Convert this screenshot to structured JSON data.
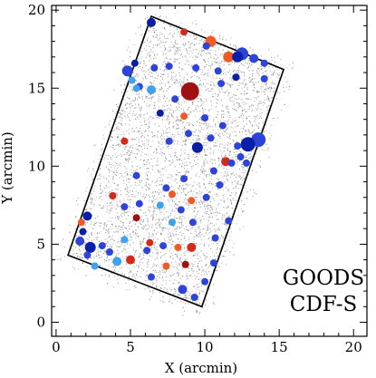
{
  "chart_data": {
    "type": "scatter",
    "xlabel": "X (arcmin)",
    "ylabel": "Y (arcmin)",
    "xlim": [
      -0.3,
      20.9
    ],
    "ylim": [
      -0.9,
      20.3
    ],
    "xticks": [
      "0",
      "5",
      "10",
      "15",
      "20"
    ],
    "yticks": [
      "0",
      "5",
      "10",
      "15",
      "20"
    ],
    "annotation_lines": [
      "GOODS",
      "CDF-S"
    ],
    "grid": false,
    "outline_corners": [
      [
        6.4,
        19.6
      ],
      [
        15.3,
        16.2
      ],
      [
        9.8,
        1.0
      ],
      [
        0.8,
        4.3
      ]
    ],
    "background_points_note": "dense field of faint grey points within outline",
    "colors": {
      "frame": "#000000",
      "dark_blue": "#0a1fa8",
      "blue": "#2e43d8",
      "light_blue": "#3ea2ee",
      "orange": "#f05a24",
      "red": "#d42a1a",
      "dark_red": "#a01010",
      "noise": "#7a7a7a"
    },
    "sources": [
      {
        "x": 6.4,
        "y": 19.2,
        "size": 5,
        "color": "dark_blue"
      },
      {
        "x": 8.6,
        "y": 18.6,
        "size": 4,
        "color": "red"
      },
      {
        "x": 10.4,
        "y": 18.0,
        "size": 6,
        "color": "orange"
      },
      {
        "x": 10.1,
        "y": 17.7,
        "size": 4,
        "color": "blue"
      },
      {
        "x": 11.6,
        "y": 17.0,
        "size": 6,
        "color": "orange"
      },
      {
        "x": 12.5,
        "y": 17.2,
        "size": 7,
        "color": "blue"
      },
      {
        "x": 12.2,
        "y": 17.0,
        "size": 6,
        "color": "dark_blue"
      },
      {
        "x": 13.3,
        "y": 16.9,
        "size": 5,
        "color": "blue"
      },
      {
        "x": 14.0,
        "y": 16.6,
        "size": 4,
        "color": "blue"
      },
      {
        "x": 4.8,
        "y": 16.1,
        "size": 6,
        "color": "blue"
      },
      {
        "x": 5.3,
        "y": 16.6,
        "size": 4,
        "color": "dark_blue"
      },
      {
        "x": 5.1,
        "y": 15.5,
        "size": 4,
        "color": "light_blue"
      },
      {
        "x": 5.6,
        "y": 15.1,
        "size": 4,
        "color": "blue"
      },
      {
        "x": 6.6,
        "y": 16.3,
        "size": 4,
        "color": "blue"
      },
      {
        "x": 7.6,
        "y": 16.4,
        "size": 4,
        "color": "blue"
      },
      {
        "x": 9.4,
        "y": 16.3,
        "size": 4,
        "color": "blue"
      },
      {
        "x": 10.9,
        "y": 16.1,
        "size": 4,
        "color": "blue"
      },
      {
        "x": 11.1,
        "y": 15.3,
        "size": 4,
        "color": "blue"
      },
      {
        "x": 12.1,
        "y": 15.7,
        "size": 4,
        "color": "dark_blue"
      },
      {
        "x": 14.0,
        "y": 15.6,
        "size": 4,
        "color": "blue"
      },
      {
        "x": 5.4,
        "y": 15.0,
        "size": 4,
        "color": "light_blue"
      },
      {
        "x": 6.4,
        "y": 14.9,
        "size": 5,
        "color": "light_blue"
      },
      {
        "x": 9.0,
        "y": 14.8,
        "size": 10,
        "color": "dark_red"
      },
      {
        "x": 8.0,
        "y": 14.3,
        "size": 4,
        "color": "blue"
      },
      {
        "x": 7.0,
        "y": 13.4,
        "size": 4,
        "color": "dark_blue"
      },
      {
        "x": 8.6,
        "y": 13.2,
        "size": 4,
        "color": "orange"
      },
      {
        "x": 10.0,
        "y": 13.1,
        "size": 4,
        "color": "blue"
      },
      {
        "x": 11.2,
        "y": 12.6,
        "size": 4,
        "color": "blue"
      },
      {
        "x": 8.9,
        "y": 12.1,
        "size": 4,
        "color": "blue"
      },
      {
        "x": 7.6,
        "y": 11.6,
        "size": 4,
        "color": "blue"
      },
      {
        "x": 10.4,
        "y": 11.8,
        "size": 4,
        "color": "blue"
      },
      {
        "x": 13.6,
        "y": 11.7,
        "size": 8,
        "color": "blue"
      },
      {
        "x": 12.9,
        "y": 11.4,
        "size": 8,
        "color": "dark_blue"
      },
      {
        "x": 12.2,
        "y": 11.3,
        "size": 4,
        "color": "blue"
      },
      {
        "x": 4.6,
        "y": 11.6,
        "size": 4,
        "color": "red"
      },
      {
        "x": 9.5,
        "y": 11.2,
        "size": 6,
        "color": "dark_blue"
      },
      {
        "x": 12.4,
        "y": 10.6,
        "size": 4,
        "color": "blue"
      },
      {
        "x": 11.4,
        "y": 10.3,
        "size": 5,
        "color": "red"
      },
      {
        "x": 11.8,
        "y": 10.2,
        "size": 4,
        "color": "blue"
      },
      {
        "x": 12.8,
        "y": 10.2,
        "size": 4,
        "color": "blue"
      },
      {
        "x": 10.6,
        "y": 9.7,
        "size": 4,
        "color": "blue"
      },
      {
        "x": 5.4,
        "y": 9.4,
        "size": 4,
        "color": "blue"
      },
      {
        "x": 8.6,
        "y": 9.2,
        "size": 4,
        "color": "blue"
      },
      {
        "x": 7.4,
        "y": 8.6,
        "size": 4,
        "color": "blue"
      },
      {
        "x": 11.0,
        "y": 8.8,
        "size": 4,
        "color": "blue"
      },
      {
        "x": 7.8,
        "y": 8.2,
        "size": 4,
        "color": "orange"
      },
      {
        "x": 10.1,
        "y": 8.0,
        "size": 4,
        "color": "blue"
      },
      {
        "x": 3.8,
        "y": 8.1,
        "size": 4,
        "color": "red"
      },
      {
        "x": 5.6,
        "y": 7.6,
        "size": 4,
        "color": "blue"
      },
      {
        "x": 4.6,
        "y": 7.4,
        "size": 4,
        "color": "blue"
      },
      {
        "x": 7.0,
        "y": 7.5,
        "size": 4,
        "color": "light_blue"
      },
      {
        "x": 9.1,
        "y": 7.8,
        "size": 4,
        "color": "orange"
      },
      {
        "x": 8.4,
        "y": 7.2,
        "size": 4,
        "color": "blue"
      },
      {
        "x": 2.1,
        "y": 6.8,
        "size": 5,
        "color": "dark_blue"
      },
      {
        "x": 1.7,
        "y": 6.4,
        "size": 4,
        "color": "orange"
      },
      {
        "x": 5.4,
        "y": 6.7,
        "size": 4,
        "color": "dark_red"
      },
      {
        "x": 7.8,
        "y": 6.4,
        "size": 4,
        "color": "light_blue"
      },
      {
        "x": 9.2,
        "y": 6.4,
        "size": 4,
        "color": "blue"
      },
      {
        "x": 11.6,
        "y": 6.5,
        "size": 4,
        "color": "blue"
      },
      {
        "x": 1.8,
        "y": 5.8,
        "size": 4,
        "color": "dark_blue"
      },
      {
        "x": 1.6,
        "y": 5.2,
        "size": 5,
        "color": "blue"
      },
      {
        "x": 2.3,
        "y": 4.8,
        "size": 6,
        "color": "dark_blue"
      },
      {
        "x": 3.1,
        "y": 4.9,
        "size": 4,
        "color": "blue"
      },
      {
        "x": 4.6,
        "y": 5.3,
        "size": 4,
        "color": "light_blue"
      },
      {
        "x": 6.3,
        "y": 5.1,
        "size": 4,
        "color": "red"
      },
      {
        "x": 6.1,
        "y": 4.6,
        "size": 4,
        "color": "blue"
      },
      {
        "x": 7.2,
        "y": 4.9,
        "size": 4,
        "color": "blue"
      },
      {
        "x": 8.2,
        "y": 4.8,
        "size": 4,
        "color": "orange"
      },
      {
        "x": 9.1,
        "y": 4.8,
        "size": 5,
        "color": "red"
      },
      {
        "x": 10.7,
        "y": 5.4,
        "size": 4,
        "color": "blue"
      },
      {
        "x": 3.6,
        "y": 4.5,
        "size": 4,
        "color": "blue"
      },
      {
        "x": 2.1,
        "y": 4.3,
        "size": 4,
        "color": "blue"
      },
      {
        "x": 5.0,
        "y": 4.0,
        "size": 5,
        "color": "red"
      },
      {
        "x": 4.1,
        "y": 3.9,
        "size": 5,
        "color": "light_blue"
      },
      {
        "x": 2.6,
        "y": 3.6,
        "size": 4,
        "color": "light_blue"
      },
      {
        "x": 7.4,
        "y": 3.6,
        "size": 4,
        "color": "orange"
      },
      {
        "x": 8.7,
        "y": 3.7,
        "size": 4,
        "color": "dark_red"
      },
      {
        "x": 10.6,
        "y": 3.8,
        "size": 4,
        "color": "blue"
      },
      {
        "x": 6.4,
        "y": 2.9,
        "size": 4,
        "color": "blue"
      },
      {
        "x": 10.0,
        "y": 2.6,
        "size": 4,
        "color": "blue"
      },
      {
        "x": 8.5,
        "y": 2.1,
        "size": 5,
        "color": "blue"
      },
      {
        "x": 9.3,
        "y": 1.6,
        "size": 4,
        "color": "blue"
      }
    ]
  }
}
